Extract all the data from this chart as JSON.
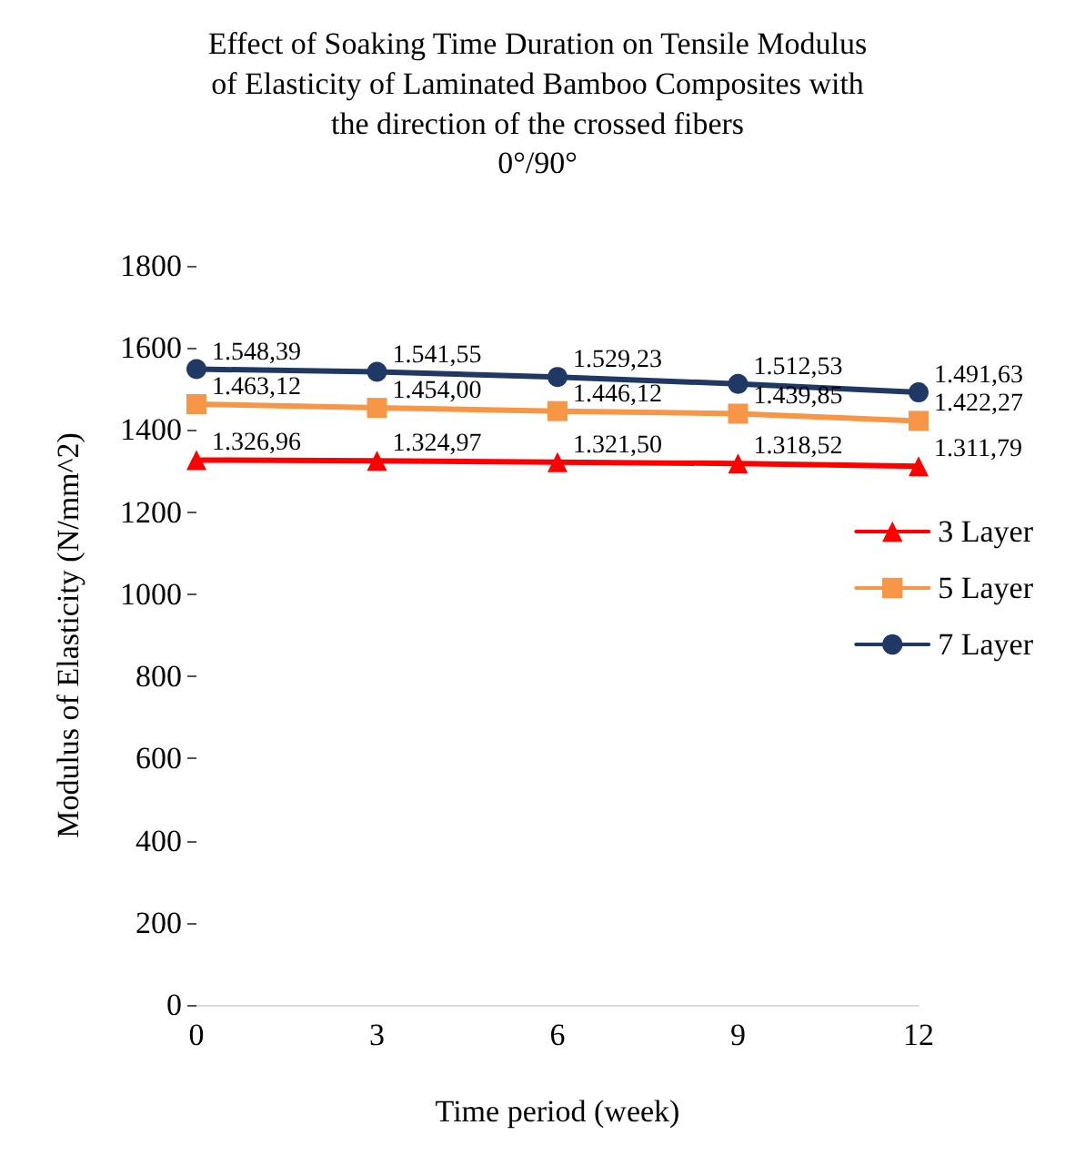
{
  "chart_data": {
    "type": "line",
    "title": "Effect of Soaking Time Duration on Tensile Modulus\nof Elasticity of Laminated Bamboo Composites with\nthe direction of the crossed fibers",
    "subtitle": "0°/90°",
    "xlabel": "Time period (week)",
    "ylabel": "Modulus of Elasticity (N/mm^2)",
    "x": [
      0,
      3,
      6,
      9,
      12
    ],
    "xlim": [
      0,
      12
    ],
    "xticks": [
      0,
      3,
      6,
      9,
      12
    ],
    "ylim": [
      0,
      1800
    ],
    "yticks": [
      0,
      200,
      400,
      600,
      800,
      1000,
      1200,
      1400,
      1600,
      1800
    ],
    "grid": false,
    "legend": "right",
    "series": [
      {
        "name": "3 Layer",
        "color": "#ff0000",
        "marker": "triangle",
        "values": [
          1326.96,
          1324.97,
          1321.5,
          1318.52,
          1311.79
        ],
        "value_labels": [
          "1.326,96",
          "1.324,97",
          "1.321,50",
          "1.318,52",
          "1.311,79"
        ]
      },
      {
        "name": "5 Layer",
        "color": "#f79646",
        "marker": "square",
        "values": [
          1463.12,
          1454.0,
          1446.12,
          1439.85,
          1422.27
        ],
        "value_labels": [
          "1.463,12",
          "1.454,00",
          "1.446,12",
          "1.439,85",
          "1.422,27"
        ]
      },
      {
        "name": "7 Layer",
        "color": "#1f3864",
        "marker": "circle",
        "values": [
          1548.39,
          1541.55,
          1529.23,
          1512.53,
          1491.63
        ],
        "value_labels": [
          "1.548,39",
          "1.541,55",
          "1.529,23",
          "1.512,53",
          "1.491,63"
        ]
      }
    ]
  }
}
